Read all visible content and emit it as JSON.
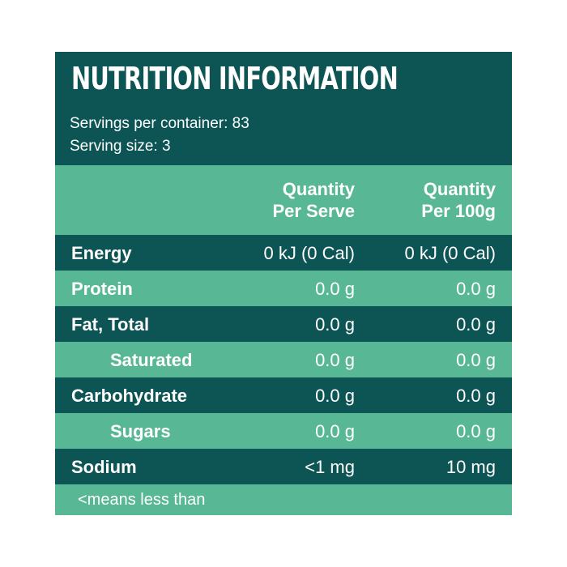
{
  "panel": {
    "title": "NUTRITION INFORMATION",
    "servings_per_container": "Servings per container: 83",
    "serving_size": "Serving size: 3",
    "colors": {
      "dark": "#0d5455",
      "light": "#58b896",
      "text": "#ffffff"
    }
  },
  "columns": {
    "per_serve_line1": "Quantity",
    "per_serve_line2": "Per Serve",
    "per_100g_line1": "Quantity",
    "per_100g_line2": "Per 100g"
  },
  "rows": [
    {
      "label": "Energy",
      "per_serve": "0 kJ (0 Cal)",
      "per_100g": "0 kJ (0 Cal)"
    },
    {
      "label": "Protein",
      "per_serve": "0.0 g",
      "per_100g": "0.0 g"
    },
    {
      "label": "Fat, Total",
      "per_serve": "0.0 g",
      "per_100g": "0.0 g"
    },
    {
      "label": "Saturated",
      "per_serve": "0.0 g",
      "per_100g": "0.0 g"
    },
    {
      "label": "Carbohydrate",
      "per_serve": "0.0 g",
      "per_100g": "0.0 g"
    },
    {
      "label": "Sugars",
      "per_serve": "0.0 g",
      "per_100g": "0.0 g"
    },
    {
      "label": "Sodium",
      "per_serve": "<1 mg",
      "per_100g": "10 mg"
    }
  ],
  "footnote": "<means less than"
}
